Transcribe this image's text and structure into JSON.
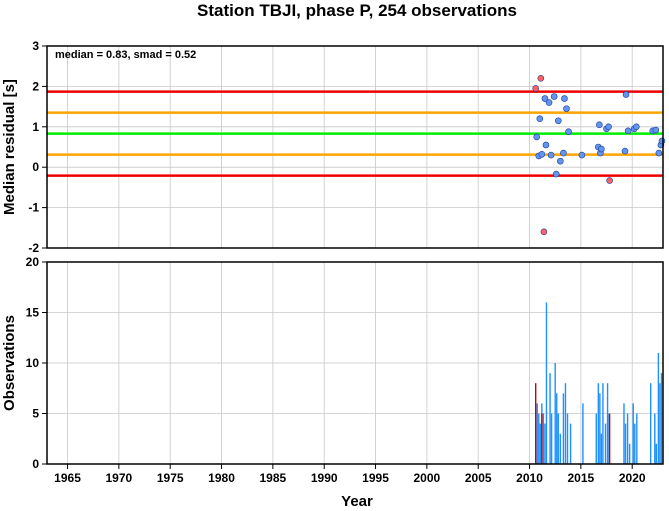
{
  "chart_data": [
    {
      "type": "scatter",
      "title": "Station TBJI, phase P, 254 observations",
      "ylabel": "Median residual [s]",
      "annotation": "median = 0.83, smad = 0.52",
      "xlim": [
        1963,
        2023
      ],
      "ylim": [
        -2,
        3
      ],
      "y_ticks": [
        -2,
        -1,
        0,
        1,
        2,
        3
      ],
      "grid": true,
      "reference_lines": [
        {
          "name": "median",
          "y": 0.83,
          "color": "#00ee00"
        },
        {
          "name": "+1 smad",
          "y": 1.35,
          "color": "#ffa500"
        },
        {
          "name": "-1 smad",
          "y": 0.31,
          "color": "#ffa500"
        },
        {
          "name": "+2 smad",
          "y": 1.87,
          "color": "#ee0000"
        },
        {
          "name": "-2 smad",
          "y": -0.21,
          "color": "#ee0000"
        }
      ],
      "series": [
        {
          "color": "#6495ed",
          "x": [
            2010.7,
            2010.9,
            2011.0,
            2011.2,
            2011.5,
            2011.6,
            2011.9,
            2012.1,
            2012.4,
            2012.6,
            2012.8,
            2013.0,
            2013.3,
            2013.4,
            2013.6,
            2013.8,
            2015.1,
            2016.7,
            2016.8,
            2016.9,
            2017.0,
            2017.5,
            2017.7,
            2019.3,
            2019.4,
            2019.6,
            2020.2,
            2020.4,
            2022.0,
            2022.3,
            2022.6,
            2022.8,
            2022.9
          ],
          "y": [
            0.75,
            0.28,
            1.2,
            0.32,
            1.7,
            0.55,
            1.6,
            0.3,
            1.75,
            -0.17,
            1.15,
            0.15,
            0.35,
            1.7,
            1.45,
            0.88,
            0.3,
            0.5,
            1.05,
            0.35,
            0.45,
            0.95,
            1.0,
            0.4,
            1.8,
            0.9,
            0.95,
            1.0,
            0.9,
            0.92,
            0.35,
            0.55,
            0.65
          ]
        },
        {
          "color": "#ff6060",
          "x": [
            2010.6,
            2011.1,
            2011.4,
            2017.8
          ],
          "y": [
            1.95,
            2.2,
            -1.6,
            -0.33
          ]
        }
      ]
    },
    {
      "type": "bar",
      "xlabel": "Year",
      "ylabel": "Observations",
      "xlim": [
        1963,
        2023
      ],
      "ylim": [
        0,
        20
      ],
      "x_ticks": [
        1965,
        1970,
        1975,
        1980,
        1985,
        1990,
        1995,
        2000,
        2005,
        2010,
        2015,
        2020
      ],
      "y_ticks": [
        0,
        5,
        10,
        15,
        20
      ],
      "grid": true,
      "series": [
        {
          "color": "#1e90ff",
          "x": [
            2010.75,
            2010.9,
            2011.05,
            2011.2,
            2011.35,
            2011.5,
            2011.65,
            2012.0,
            2012.15,
            2012.5,
            2012.65,
            2012.8,
            2013.0,
            2013.3,
            2013.5,
            2013.7,
            2014.0,
            2015.2,
            2016.5,
            2016.7,
            2016.85,
            2017.0,
            2017.15,
            2017.4,
            2017.6,
            2017.75,
            2019.2,
            2019.35,
            2019.55,
            2019.75,
            2020.1,
            2020.25,
            2020.45,
            2021.8,
            2022.2,
            2022.35,
            2022.55,
            2022.7,
            2022.85
          ],
          "values": [
            6,
            5,
            4,
            6,
            5,
            4,
            16,
            9,
            5,
            10,
            7,
            5,
            3,
            7,
            8,
            5,
            4,
            6,
            5,
            8,
            7,
            3,
            8,
            4,
            8,
            5,
            6,
            4,
            5,
            2,
            6,
            4,
            5,
            8,
            5,
            2,
            11,
            8,
            9
          ]
        },
        {
          "color": "#cc0000",
          "x": [
            2010.6,
            2011.2,
            2017.8
          ],
          "values": [
            8,
            5,
            5
          ]
        }
      ]
    }
  ]
}
